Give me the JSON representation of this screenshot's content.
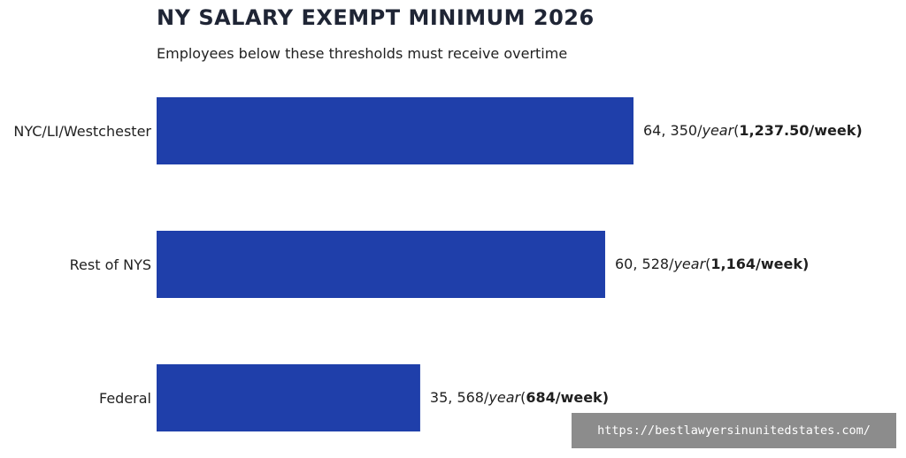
{
  "title": "NY SALARY EXEMPT MINIMUM 2026",
  "subtitle": "Employees below these thresholds must receive overtime",
  "watermark": "https://bestlawyersinunitedstates.com/",
  "colors": {
    "bar": "#1f3faa",
    "background": "#ffffff"
  },
  "chart_data": {
    "type": "bar",
    "orientation": "horizontal",
    "title": "NY SALARY EXEMPT MINIMUM 2026",
    "subtitle": "Employees below these thresholds must receive overtime",
    "categories": [
      "NYC/LI/Westchester",
      "Rest of NYS",
      "Federal"
    ],
    "values": [
      64350,
      60528,
      35568
    ],
    "xlim": [
      0,
      64350
    ],
    "grid": false,
    "labels": [
      {
        "head": "64, 350/",
        "italic": "year",
        "open": "(",
        "bold": "1,237.50/week)"
      },
      {
        "head": "60, 528/",
        "italic": "year",
        "open": "(",
        "bold": "1,164/week)"
      },
      {
        "head": "35, 568/",
        "italic": "year",
        "open": "(",
        "bold": "684/week)"
      }
    ]
  }
}
